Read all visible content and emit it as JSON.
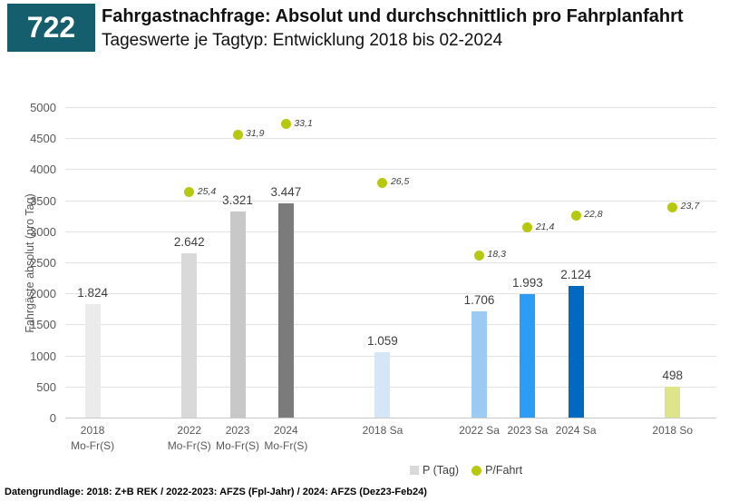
{
  "header": {
    "number": "722",
    "badge_color": "#155e6d",
    "title": "Fahrgastnachfrage: Absolut und durchschnittlich pro Fahrplanfahrt",
    "subtitle": "Tageswerte je Tagtyp: Entwicklung 2018 bis 02-2024"
  },
  "chart_data": {
    "type": "bar+scatter",
    "ylabel": "Fahrgäste absolut (pro Tag)",
    "primary_axis": {
      "min": 0,
      "max": 5000,
      "tick_step": 500
    },
    "secondary_axis_implied_max": 35,
    "grid": true,
    "slots": 13,
    "bars": [
      {
        "slot": 1,
        "category": "2018",
        "category_line2": "Mo-Fr(S)",
        "value": 1824,
        "label": "1.824",
        "color": "#ebebeb"
      },
      {
        "slot": 3,
        "category": "2022",
        "category_line2": "Mo-Fr(S)",
        "value": 2642,
        "label": "2.642",
        "color": "#d9d9d9"
      },
      {
        "slot": 4,
        "category": "2023",
        "category_line2": "Mo-Fr(S)",
        "value": 3321,
        "label": "3.321",
        "color": "#c8c8c8"
      },
      {
        "slot": 5,
        "category": "2024",
        "category_line2": "Mo-Fr(S)",
        "value": 3447,
        "label": "3.447",
        "color": "#7b7b7b"
      },
      {
        "slot": 7,
        "category": "2018 Sa",
        "category_line2": "",
        "value": 1059,
        "label": "1.059",
        "color": "#d5e6f7"
      },
      {
        "slot": 9,
        "category": "2022 Sa",
        "category_line2": "",
        "value": 1706,
        "label": "1.706",
        "color": "#9bcbf3"
      },
      {
        "slot": 10,
        "category": "2023 Sa",
        "category_line2": "",
        "value": 1993,
        "label": "1.993",
        "color": "#2d9cf7"
      },
      {
        "slot": 11,
        "category": "2024 Sa",
        "category_line2": "",
        "value": 2124,
        "label": "2.124",
        "color": "#0169c0"
      },
      {
        "slot": 13,
        "category": "2018 So",
        "category_line2": "",
        "value": 498,
        "label": "498",
        "color": "#dde58a"
      }
    ],
    "points": [
      {
        "slot": 3,
        "value": 25.4,
        "label": "25,4"
      },
      {
        "slot": 4,
        "value": 31.9,
        "label": "31,9"
      },
      {
        "slot": 5,
        "value": 33.1,
        "label": "33,1"
      },
      {
        "slot": 7,
        "value": 26.5,
        "label": "26,5"
      },
      {
        "slot": 9,
        "value": 18.3,
        "label": "18,3"
      },
      {
        "slot": 10,
        "value": 21.4,
        "label": "21,4"
      },
      {
        "slot": 11,
        "value": 22.8,
        "label": "22,8"
      },
      {
        "slot": 13,
        "value": 23.7,
        "label": "23,7"
      }
    ],
    "point_color": "#b6c90f",
    "legend": [
      {
        "label": "P (Tag)",
        "marker": "square",
        "color": "#d9d9d9"
      },
      {
        "label": "P/Fahrt",
        "marker": "circle",
        "color": "#b6c90f"
      }
    ]
  },
  "footer": {
    "source": "Datengrundlage: 2018: Z+B REK / 2022-2023: AFZS (Fpl-Jahr) / 2024: AFZS (Dez23-Feb24)"
  }
}
